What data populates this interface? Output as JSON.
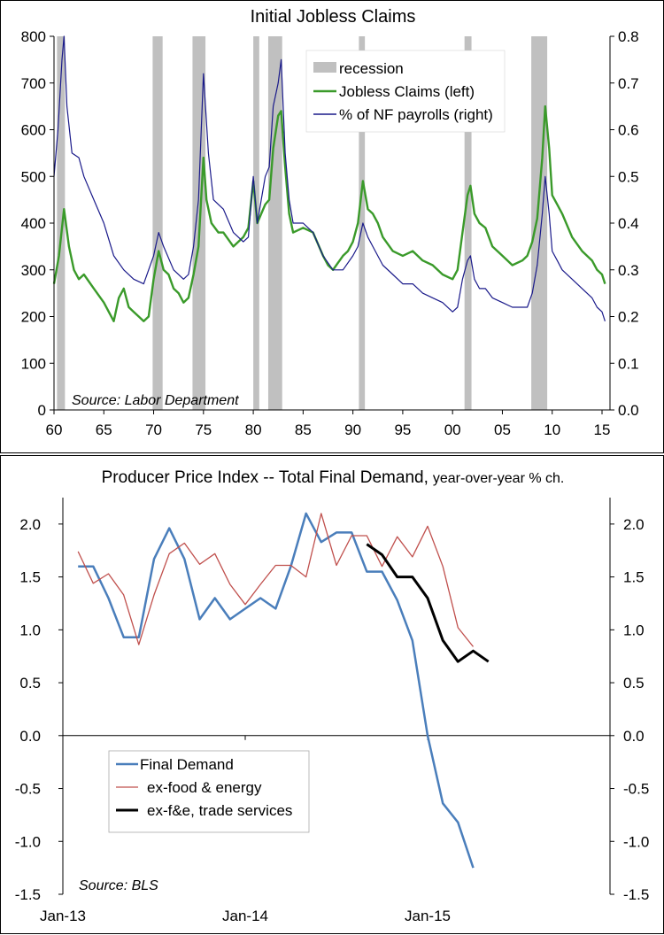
{
  "chart_data": [
    {
      "type": "line",
      "title": "Initial Jobless Claims",
      "source": "Source: Labor Department",
      "x_ticks": [
        "60",
        "65",
        "70",
        "75",
        "80",
        "85",
        "90",
        "95",
        "00",
        "05",
        "10",
        "15"
      ],
      "x_tick_years": [
        1960,
        1965,
        1970,
        1975,
        1980,
        1985,
        1990,
        1995,
        2000,
        2005,
        2010,
        2015
      ],
      "xlim": [
        1960,
        2015.8
      ],
      "ylim_left": [
        0,
        800
      ],
      "ylim_right": [
        0.0,
        0.8
      ],
      "y_ticks_left": [
        "0",
        "100",
        "200",
        "300",
        "400",
        "500",
        "600",
        "700",
        "800"
      ],
      "y_ticks_right": [
        "0.0",
        "0.1",
        "0.2",
        "0.3",
        "0.4",
        "0.5",
        "0.6",
        "0.7",
        "0.8"
      ],
      "legend": {
        "placement": "top-right"
      },
      "recessions": [
        {
          "start": 1960.3,
          "end": 1961.1
        },
        {
          "start": 1969.9,
          "end": 1970.9
        },
        {
          "start": 1973.9,
          "end": 1975.2
        },
        {
          "start": 1980.0,
          "end": 1980.6
        },
        {
          "start": 1981.5,
          "end": 1982.9
        },
        {
          "start": 1990.6,
          "end": 1991.2
        },
        {
          "start": 2001.2,
          "end": 2001.9
        },
        {
          "start": 2007.9,
          "end": 2009.5
        }
      ],
      "series": [
        {
          "name": "recession",
          "color": "#c0c0c0",
          "kind": "band"
        },
        {
          "name": "Jobless Claims (left)",
          "color": "#3a9a2a",
          "axis": "left",
          "x": [
            1960.0,
            1960.5,
            1961.0,
            1961.5,
            1962.0,
            1962.5,
            1963.0,
            1964.0,
            1965.0,
            1966.0,
            1966.5,
            1967.0,
            1967.5,
            1968.0,
            1968.5,
            1969.0,
            1969.5,
            1970.0,
            1970.5,
            1971.0,
            1971.5,
            1972.0,
            1972.5,
            1973.0,
            1973.5,
            1974.0,
            1974.5,
            1975.0,
            1975.3,
            1975.8,
            1976.5,
            1977.0,
            1978.0,
            1979.0,
            1979.5,
            1980.0,
            1980.4,
            1980.8,
            1981.2,
            1981.6,
            1982.0,
            1982.5,
            1982.8,
            1983.2,
            1983.6,
            1984.0,
            1985.0,
            1986.0,
            1987.0,
            1987.5,
            1988.0,
            1989.0,
            1989.5,
            1990.0,
            1990.5,
            1991.0,
            1991.5,
            1992.0,
            1992.5,
            1993.0,
            1994.0,
            1995.0,
            1996.0,
            1997.0,
            1998.0,
            1999.0,
            2000.0,
            2000.5,
            2001.0,
            2001.5,
            2001.8,
            2002.2,
            2002.7,
            2003.3,
            2004.0,
            2005.0,
            2006.0,
            2007.0,
            2007.5,
            2008.0,
            2008.5,
            2009.0,
            2009.3,
            2009.7,
            2010.0,
            2010.5,
            2011.0,
            2012.0,
            2013.0,
            2014.0,
            2014.5,
            2015.0,
            2015.3
          ],
          "values": [
            270,
            330,
            430,
            350,
            300,
            280,
            290,
            260,
            230,
            190,
            240,
            260,
            220,
            210,
            200,
            190,
            200,
            280,
            340,
            300,
            290,
            260,
            250,
            230,
            240,
            290,
            350,
            540,
            450,
            400,
            380,
            380,
            350,
            370,
            390,
            490,
            400,
            420,
            440,
            450,
            560,
            630,
            640,
            520,
            420,
            380,
            390,
            380,
            330,
            310,
            300,
            330,
            340,
            360,
            400,
            490,
            430,
            420,
            400,
            370,
            340,
            330,
            340,
            320,
            310,
            290,
            280,
            300,
            380,
            460,
            480,
            420,
            400,
            390,
            350,
            330,
            310,
            320,
            330,
            360,
            410,
            540,
            650,
            560,
            460,
            440,
            420,
            370,
            340,
            320,
            300,
            290,
            270
          ]
        },
        {
          "name": "% of NF payrolls (right)",
          "color": "#1a1a8a",
          "axis": "right",
          "x": [
            1960.0,
            1960.4,
            1960.8,
            1961.0,
            1961.3,
            1961.8,
            1962.5,
            1963.0,
            1964.0,
            1965.0,
            1966.0,
            1967.0,
            1968.0,
            1969.0,
            1970.0,
            1970.5,
            1971.0,
            1972.0,
            1973.0,
            1973.5,
            1974.0,
            1974.5,
            1975.0,
            1975.5,
            1976.0,
            1976.5,
            1977.0,
            1978.0,
            1979.0,
            1979.5,
            1980.0,
            1980.4,
            1980.8,
            1981.2,
            1981.6,
            1982.0,
            1982.5,
            1982.8,
            1983.2,
            1983.6,
            1984.0,
            1985.0,
            1986.0,
            1987.0,
            1988.0,
            1989.0,
            1990.0,
            1990.5,
            1991.0,
            1991.5,
            1992.0,
            1993.0,
            1994.0,
            1995.0,
            1996.0,
            1997.0,
            1998.0,
            1999.0,
            2000.0,
            2000.5,
            2001.0,
            2001.5,
            2001.8,
            2002.2,
            2002.7,
            2003.3,
            2004.0,
            2005.0,
            2006.0,
            2007.0,
            2007.5,
            2008.0,
            2008.5,
            2009.0,
            2009.3,
            2009.7,
            2010.0,
            2010.5,
            2011.0,
            2012.0,
            2013.0,
            2014.0,
            2014.5,
            2015.0,
            2015.3
          ],
          "values": [
            0.5,
            0.6,
            0.75,
            0.8,
            0.65,
            0.55,
            0.54,
            0.5,
            0.45,
            0.4,
            0.33,
            0.3,
            0.28,
            0.27,
            0.33,
            0.38,
            0.35,
            0.3,
            0.28,
            0.29,
            0.35,
            0.45,
            0.72,
            0.55,
            0.45,
            0.44,
            0.43,
            0.38,
            0.36,
            0.37,
            0.5,
            0.4,
            0.45,
            0.5,
            0.52,
            0.65,
            0.7,
            0.75,
            0.55,
            0.45,
            0.4,
            0.4,
            0.38,
            0.33,
            0.3,
            0.3,
            0.33,
            0.35,
            0.4,
            0.37,
            0.35,
            0.31,
            0.29,
            0.27,
            0.27,
            0.25,
            0.24,
            0.23,
            0.21,
            0.22,
            0.28,
            0.32,
            0.33,
            0.28,
            0.26,
            0.26,
            0.24,
            0.23,
            0.22,
            0.22,
            0.22,
            0.25,
            0.31,
            0.42,
            0.5,
            0.42,
            0.34,
            0.32,
            0.3,
            0.28,
            0.26,
            0.24,
            0.22,
            0.21,
            0.19
          ]
        }
      ]
    },
    {
      "type": "line",
      "title": "Producer Price Index -- Total Final Demand,",
      "title_suffix": "year-over-year % ch.",
      "source": "Source: BLS",
      "x_ticks": [
        "Jan-13",
        "Jan-14",
        "Jan-15"
      ],
      "x_tick_index": [
        0,
        12,
        24
      ],
      "xlim": [
        0,
        36
      ],
      "ylim": [
        -1.5,
        2.25
      ],
      "y_ticks": [
        "-1.5",
        "-1.0",
        "-0.5",
        "0.0",
        "0.5",
        "1.0",
        "1.5",
        "2.0"
      ],
      "y_tick_values": [
        -1.5,
        -1.0,
        -0.5,
        0.0,
        0.5,
        1.0,
        1.5,
        2.0
      ],
      "legend": {
        "placement": "bottom-left"
      },
      "series": [
        {
          "name": "Final Demand",
          "color": "#4a7ebb",
          "width": 2.5,
          "x": [
            1,
            2,
            3,
            4,
            5,
            6,
            7,
            8,
            9,
            10,
            11,
            12,
            13,
            14,
            15,
            16,
            17,
            18,
            19,
            20,
            21,
            22,
            23,
            24,
            25,
            26,
            27,
            28
          ],
          "values": [
            1.6,
            1.6,
            1.3,
            0.93,
            0.93,
            1.67,
            1.96,
            1.67,
            1.1,
            1.3,
            1.1,
            1.2,
            1.3,
            1.2,
            1.6,
            2.1,
            1.83,
            1.92,
            1.92,
            1.55,
            1.55,
            1.28,
            0.9,
            0.0,
            -0.64,
            -0.82,
            -1.25,
            null
          ]
        },
        {
          "name": "ex-food & energy",
          "color": "#c0504d",
          "width": 1.3,
          "x": [
            1,
            2,
            3,
            4,
            5,
            6,
            7,
            8,
            9,
            10,
            11,
            12,
            13,
            14,
            15,
            16,
            17,
            18,
            19,
            20,
            21,
            22,
            23,
            24,
            25,
            26,
            27
          ],
          "values": [
            1.74,
            1.44,
            1.53,
            1.33,
            0.86,
            1.33,
            1.72,
            1.82,
            1.62,
            1.72,
            1.43,
            1.24,
            1.43,
            1.61,
            1.61,
            1.5,
            2.1,
            1.61,
            1.89,
            1.89,
            1.6,
            1.88,
            1.69,
            1.98,
            1.6,
            1.02,
            0.84
          ]
        },
        {
          "name": "ex-f&e, trade services",
          "color": "#000000",
          "width": 3,
          "x": [
            20,
            21,
            22,
            23,
            24,
            25,
            26,
            27,
            28
          ],
          "values": [
            1.81,
            1.71,
            1.5,
            1.5,
            1.3,
            0.9,
            0.7,
            0.8,
            0.7
          ]
        }
      ]
    }
  ]
}
